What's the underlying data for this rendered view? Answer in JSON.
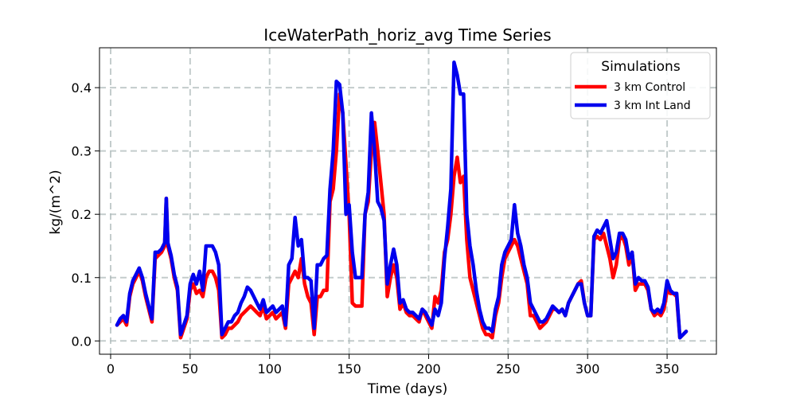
{
  "chart_data": {
    "type": "line",
    "title": "IceWaterPath_horiz_avg Time Series",
    "xlabel": "Time (days)",
    "ylabel": "kg/(m^2)",
    "xlim": [
      -7,
      381
    ],
    "ylim": [
      -0.021,
      0.463
    ],
    "xticks": [
      0,
      50,
      100,
      150,
      200,
      250,
      300,
      350
    ],
    "yticks": [
      0.0,
      0.1,
      0.2,
      0.3,
      0.4
    ],
    "ytick_labels": [
      "0.0",
      "0.1",
      "0.2",
      "0.3",
      "0.4"
    ],
    "grid": true,
    "legend": {
      "title": "Simulations",
      "position": "top-right"
    },
    "series": [
      {
        "name": "3 km Control",
        "color": "#ff0000",
        "x": [
          4,
          6,
          8,
          10,
          12,
          14,
          16,
          18,
          20,
          22,
          24,
          26,
          28,
          30,
          32,
          34,
          35,
          36,
          38,
          40,
          42,
          44,
          46,
          48,
          50,
          52,
          54,
          56,
          58,
          60,
          62,
          64,
          66,
          68,
          70,
          72,
          74,
          76,
          78,
          80,
          82,
          84,
          86,
          88,
          90,
          92,
          94,
          96,
          98,
          100,
          102,
          104,
          106,
          108,
          110,
          112,
          114,
          116,
          118,
          120,
          122,
          124,
          126,
          128,
          130,
          132,
          134,
          136,
          138,
          140,
          142,
          144,
          146,
          148,
          150,
          152,
          154,
          156,
          158,
          160,
          162,
          164,
          166,
          168,
          170,
          172,
          174,
          176,
          178,
          180,
          182,
          184,
          186,
          188,
          190,
          192,
          194,
          196,
          198,
          200,
          202,
          204,
          206,
          208,
          210,
          212,
          214,
          216,
          218,
          220,
          222,
          224,
          226,
          228,
          230,
          232,
          234,
          236,
          238,
          240,
          242,
          244,
          246,
          248,
          250,
          252,
          254,
          256,
          258,
          260,
          262,
          264,
          266,
          268,
          270,
          272,
          274,
          276,
          278,
          280,
          282,
          284,
          286,
          288,
          290,
          292,
          294,
          296,
          298,
          300,
          302,
          304,
          306,
          308,
          310,
          312,
          314,
          316,
          318,
          320,
          322,
          324,
          326,
          328,
          330,
          332,
          334,
          336,
          338,
          340,
          342,
          344,
          346,
          348,
          350,
          352,
          354,
          356,
          358,
          360,
          362
        ],
        "values": [
          0.025,
          0.03,
          0.035,
          0.025,
          0.07,
          0.09,
          0.1,
          0.11,
          0.095,
          0.07,
          0.05,
          0.03,
          0.13,
          0.135,
          0.14,
          0.15,
          0.225,
          0.15,
          0.13,
          0.1,
          0.08,
          0.005,
          0.02,
          0.035,
          0.08,
          0.09,
          0.075,
          0.08,
          0.07,
          0.1,
          0.11,
          0.11,
          0.1,
          0.08,
          0.005,
          0.01,
          0.02,
          0.02,
          0.025,
          0.03,
          0.04,
          0.045,
          0.05,
          0.055,
          0.05,
          0.045,
          0.04,
          0.055,
          0.035,
          0.04,
          0.045,
          0.035,
          0.04,
          0.045,
          0.02,
          0.09,
          0.1,
          0.11,
          0.1,
          0.13,
          0.09,
          0.07,
          0.06,
          0.01,
          0.07,
          0.07,
          0.08,
          0.08,
          0.22,
          0.24,
          0.3,
          0.39,
          0.36,
          0.28,
          0.2,
          0.06,
          0.055,
          0.055,
          0.055,
          0.2,
          0.22,
          0.3,
          0.345,
          0.3,
          0.25,
          0.2,
          0.07,
          0.1,
          0.12,
          0.1,
          0.05,
          0.06,
          0.045,
          0.04,
          0.04,
          0.035,
          0.03,
          0.05,
          0.04,
          0.03,
          0.02,
          0.07,
          0.06,
          0.08,
          0.14,
          0.16,
          0.2,
          0.26,
          0.29,
          0.25,
          0.26,
          0.16,
          0.1,
          0.08,
          0.06,
          0.04,
          0.02,
          0.01,
          0.01,
          0.005,
          0.04,
          0.06,
          0.1,
          0.13,
          0.14,
          0.15,
          0.16,
          0.15,
          0.13,
          0.11,
          0.09,
          0.04,
          0.04,
          0.03,
          0.02,
          0.025,
          0.03,
          0.04,
          0.05,
          0.05,
          0.045,
          0.05,
          0.04,
          0.06,
          0.07,
          0.08,
          0.09,
          0.095,
          0.06,
          0.04,
          0.04,
          0.16,
          0.165,
          0.16,
          0.17,
          0.15,
          0.13,
          0.1,
          0.12,
          0.16,
          0.165,
          0.15,
          0.12,
          0.14,
          0.08,
          0.09,
          0.09,
          0.09,
          0.08,
          0.05,
          0.04,
          0.045,
          0.04,
          0.05,
          0.08,
          0.075,
          0.075,
          0.07,
          0.005,
          0.01,
          0.015
        ]
      },
      {
        "name": "3 km Int Land",
        "color": "#0000ee",
        "x": [
          4,
          6,
          8,
          10,
          12,
          14,
          16,
          18,
          20,
          22,
          24,
          26,
          28,
          30,
          32,
          34,
          35,
          36,
          38,
          40,
          42,
          44,
          46,
          48,
          50,
          52,
          54,
          56,
          58,
          60,
          62,
          64,
          66,
          68,
          70,
          72,
          74,
          76,
          78,
          80,
          82,
          84,
          86,
          88,
          90,
          92,
          94,
          96,
          98,
          100,
          102,
          104,
          106,
          108,
          110,
          112,
          114,
          116,
          118,
          120,
          122,
          124,
          126,
          128,
          130,
          132,
          134,
          136,
          138,
          140,
          142,
          144,
          146,
          148,
          150,
          152,
          154,
          156,
          158,
          160,
          162,
          164,
          166,
          168,
          170,
          172,
          174,
          176,
          178,
          180,
          182,
          184,
          186,
          188,
          190,
          192,
          194,
          196,
          198,
          200,
          202,
          204,
          206,
          208,
          210,
          212,
          214,
          216,
          218,
          220,
          222,
          224,
          226,
          228,
          230,
          232,
          234,
          236,
          238,
          240,
          242,
          244,
          246,
          248,
          250,
          252,
          254,
          256,
          258,
          260,
          262,
          264,
          266,
          268,
          270,
          272,
          274,
          276,
          278,
          280,
          282,
          284,
          286,
          288,
          290,
          292,
          294,
          296,
          298,
          300,
          302,
          304,
          306,
          308,
          310,
          312,
          314,
          316,
          318,
          320,
          322,
          324,
          326,
          328,
          330,
          332,
          334,
          336,
          338,
          340,
          342,
          344,
          346,
          348,
          350,
          352,
          354,
          356,
          358,
          360,
          362
        ],
        "values": [
          0.025,
          0.035,
          0.04,
          0.03,
          0.075,
          0.095,
          0.105,
          0.115,
          0.1,
          0.075,
          0.055,
          0.035,
          0.14,
          0.14,
          0.145,
          0.155,
          0.225,
          0.155,
          0.135,
          0.105,
          0.085,
          0.01,
          0.025,
          0.04,
          0.09,
          0.105,
          0.09,
          0.11,
          0.08,
          0.15,
          0.15,
          0.15,
          0.14,
          0.12,
          0.01,
          0.02,
          0.03,
          0.03,
          0.04,
          0.045,
          0.06,
          0.07,
          0.085,
          0.08,
          0.07,
          0.06,
          0.05,
          0.065,
          0.045,
          0.05,
          0.055,
          0.045,
          0.05,
          0.055,
          0.025,
          0.12,
          0.13,
          0.195,
          0.15,
          0.16,
          0.1,
          0.1,
          0.095,
          0.02,
          0.12,
          0.12,
          0.13,
          0.135,
          0.24,
          0.3,
          0.41,
          0.405,
          0.36,
          0.2,
          0.215,
          0.14,
          0.1,
          0.1,
          0.1,
          0.2,
          0.235,
          0.36,
          0.3,
          0.22,
          0.21,
          0.19,
          0.09,
          0.12,
          0.145,
          0.12,
          0.06,
          0.065,
          0.05,
          0.045,
          0.045,
          0.04,
          0.035,
          0.05,
          0.045,
          0.035,
          0.025,
          0.05,
          0.04,
          0.06,
          0.13,
          0.18,
          0.24,
          0.44,
          0.42,
          0.39,
          0.39,
          0.2,
          0.15,
          0.12,
          0.08,
          0.05,
          0.03,
          0.02,
          0.02,
          0.015,
          0.05,
          0.07,
          0.12,
          0.14,
          0.15,
          0.16,
          0.215,
          0.17,
          0.15,
          0.12,
          0.1,
          0.06,
          0.05,
          0.04,
          0.03,
          0.03,
          0.035,
          0.045,
          0.055,
          0.05,
          0.045,
          0.05,
          0.04,
          0.06,
          0.07,
          0.08,
          0.09,
          0.09,
          0.06,
          0.04,
          0.04,
          0.165,
          0.175,
          0.17,
          0.18,
          0.19,
          0.16,
          0.13,
          0.14,
          0.17,
          0.17,
          0.16,
          0.13,
          0.14,
          0.09,
          0.1,
          0.095,
          0.095,
          0.085,
          0.05,
          0.045,
          0.05,
          0.045,
          0.06,
          0.095,
          0.08,
          0.075,
          0.075,
          0.005,
          0.01,
          0.015
        ]
      }
    ]
  }
}
